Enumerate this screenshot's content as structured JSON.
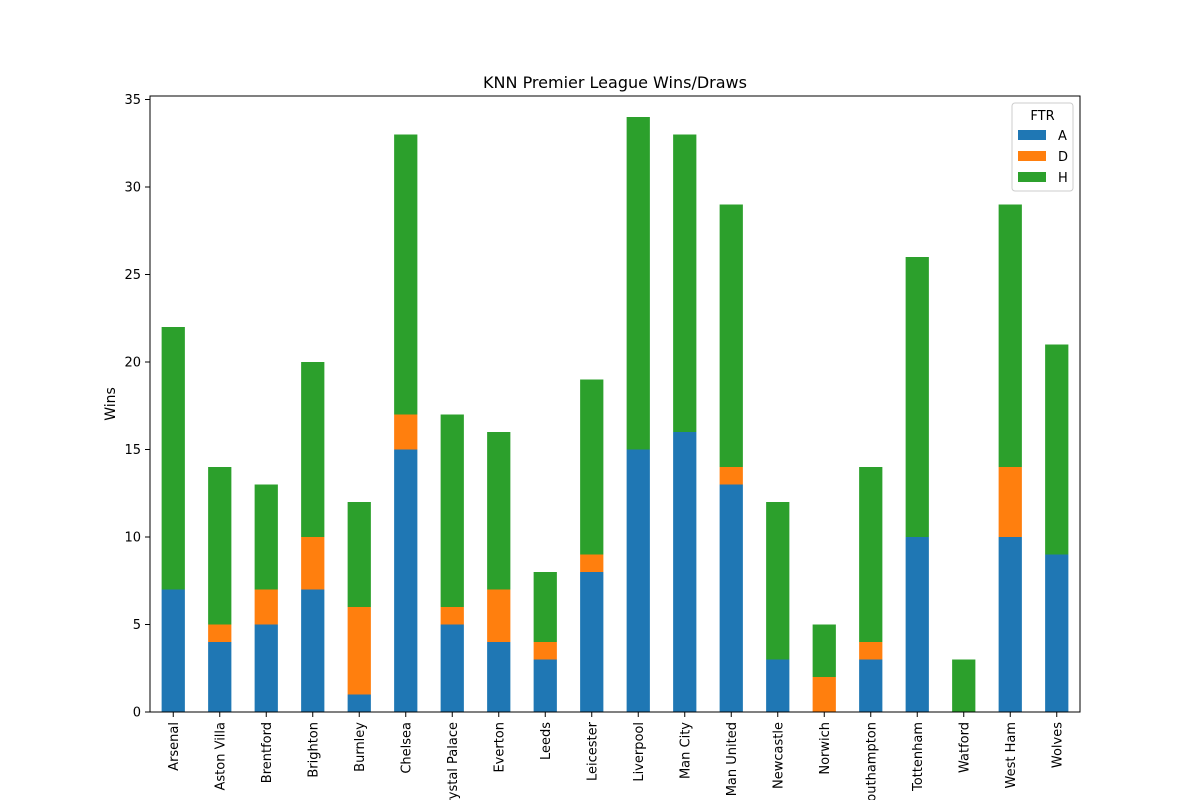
{
  "chart_data": {
    "type": "bar",
    "stacked": true,
    "title": "KNN Premier League Wins/Draws",
    "xlabel": "",
    "ylabel": "Wins",
    "ylim": [
      0,
      35.2
    ],
    "yticks": [
      0,
      5,
      10,
      15,
      20,
      25,
      30,
      35
    ],
    "grid": false,
    "legend": {
      "title": "FTR",
      "placement": "top-right"
    },
    "categories": [
      "Arsenal",
      "Aston Villa",
      "Brentford",
      "Brighton",
      "Burnley",
      "Chelsea",
      "Crystal Palace",
      "Everton",
      "Leeds",
      "Leicester",
      "Liverpool",
      "Man City",
      "Man United",
      "Newcastle",
      "Norwich",
      "Southampton",
      "Tottenham",
      "Watford",
      "West Ham",
      "Wolves"
    ],
    "series": [
      {
        "name": "A",
        "color": "#1f77b4",
        "values": [
          7,
          4,
          5,
          7,
          1,
          15,
          5,
          4,
          3,
          8,
          15,
          16,
          13,
          3,
          0,
          3,
          10,
          0,
          10,
          9
        ]
      },
      {
        "name": "D",
        "color": "#ff7f0e",
        "values": [
          0,
          1,
          2,
          3,
          5,
          2,
          1,
          3,
          1,
          1,
          0,
          0,
          1,
          0,
          2,
          1,
          0,
          0,
          4,
          0
        ]
      },
      {
        "name": "H",
        "color": "#2ca02c",
        "values": [
          15,
          9,
          6,
          10,
          6,
          16,
          11,
          9,
          4,
          10,
          19,
          17,
          15,
          9,
          3,
          10,
          16,
          3,
          15,
          12
        ]
      }
    ]
  }
}
